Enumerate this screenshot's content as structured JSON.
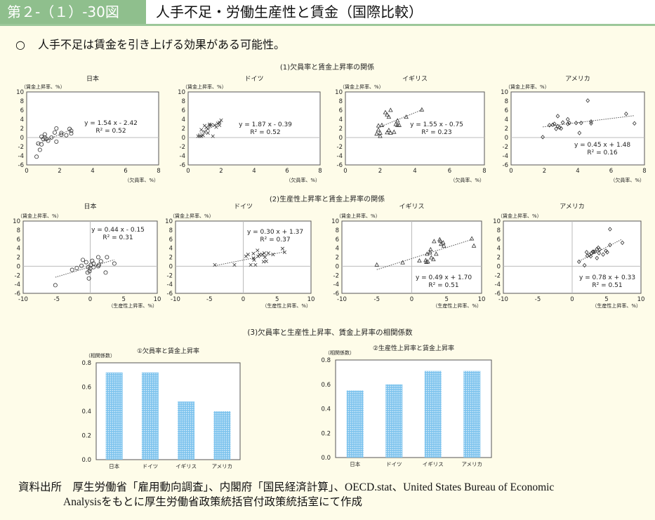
{
  "header": {
    "figure_number": "第２-（１）-30図",
    "title": "人手不足・労働生産性と賃金（国際比較）"
  },
  "lead": {
    "bullet": "○",
    "text": "人手不足は賃金を引き上げる効果がある可能性。"
  },
  "section_titles": [
    "(1)欠員率と賃金上昇率の関係",
    "(2)生産性上昇率と賃金上昇率の関係",
    "(3)欠員率と生産性上昇率、賃金上昇率の相関係数"
  ],
  "colors": {
    "header_green": "#8fbf8d",
    "bar_blue": "#7fc4ee",
    "background": "#fefce9"
  },
  "chart_data": [
    {
      "type": "scatter",
      "group": 1,
      "title": "日本",
      "ylabel": "（賃金上昇率、%）",
      "xlabel": "（欠員率、%）",
      "xlim": [
        0,
        8
      ],
      "ylim": [
        -6,
        10
      ],
      "xticks": [
        0,
        2,
        4,
        6,
        8
      ],
      "yticks": [
        -6,
        -4,
        -2,
        0,
        2,
        4,
        6,
        8,
        10
      ],
      "marker": "circle",
      "equation": "y = 1.54 x - 2.42",
      "r2": "R² = 0.52",
      "trend": {
        "slope": 1.54,
        "intercept": -2.42,
        "x_range": [
          0.6,
          2.7
        ]
      },
      "points": [
        [
          0.6,
          -4.2
        ],
        [
          0.7,
          -1.3
        ],
        [
          0.8,
          -2.7
        ],
        [
          0.9,
          -1.5
        ],
        [
          0.9,
          0.2
        ],
        [
          1.0,
          -0.3
        ],
        [
          1.1,
          0.7
        ],
        [
          1.1,
          0
        ],
        [
          1.2,
          -0.3
        ],
        [
          1.3,
          -0.7
        ],
        [
          1.5,
          0
        ],
        [
          1.7,
          1.1
        ],
        [
          1.8,
          2.0
        ],
        [
          1.8,
          -0.9
        ],
        [
          2.1,
          1.0
        ],
        [
          2.1,
          0.6
        ],
        [
          2.4,
          0.5
        ],
        [
          2.6,
          1.9
        ],
        [
          2.7,
          0.9
        ],
        [
          2.7,
          1.5
        ]
      ]
    },
    {
      "type": "scatter",
      "group": 1,
      "title": "ドイツ",
      "ylabel": "（賃金上昇率、%）",
      "xlabel": "（欠員率、%）",
      "xlim": [
        0,
        8
      ],
      "ylim": [
        -6,
        10
      ],
      "xticks": [
        0,
        2,
        4,
        6,
        8
      ],
      "yticks": [
        -6,
        -4,
        -2,
        0,
        2,
        4,
        6,
        8,
        10
      ],
      "marker": "cross",
      "equation": "y = 1.87 x - 0.39",
      "r2": "R² = 0.52",
      "trend": {
        "slope": 1.87,
        "intercept": -0.39,
        "x_range": [
          0.6,
          2.0
        ]
      },
      "points": [
        [
          0.6,
          0.3
        ],
        [
          0.7,
          0.3
        ],
        [
          0.8,
          0.3
        ],
        [
          0.8,
          1.7
        ],
        [
          0.9,
          0.5
        ],
        [
          1.0,
          2.6
        ],
        [
          1.0,
          1.2
        ],
        [
          1.1,
          2.2
        ],
        [
          1.2,
          1.0
        ],
        [
          1.2,
          1.9
        ],
        [
          1.3,
          2.9
        ],
        [
          1.3,
          2.6
        ],
        [
          1.4,
          2.8
        ],
        [
          1.5,
          0.3
        ],
        [
          1.6,
          2.7
        ],
        [
          1.7,
          2.3
        ],
        [
          1.8,
          3.1
        ],
        [
          1.9,
          2.7
        ],
        [
          1.9,
          3.3
        ],
        [
          2.0,
          3.8
        ]
      ]
    },
    {
      "type": "scatter",
      "group": 1,
      "title": "イギリス",
      "ylabel": "（賃金上昇率、%）",
      "xlabel": "（欠員率、%）",
      "xlim": [
        0,
        8
      ],
      "ylim": [
        -6,
        10
      ],
      "xticks": [
        0,
        2,
        4,
        6,
        8
      ],
      "yticks": [
        -6,
        -4,
        -2,
        0,
        2,
        4,
        6,
        8,
        10
      ],
      "marker": "triangle",
      "equation": "y = 1.55 x - 0.75",
      "r2": "R² = 0.23",
      "trend": {
        "slope": 1.55,
        "intercept": -0.75,
        "x_range": [
          2.1,
          4.4
        ]
      },
      "points": [
        [
          1.8,
          0.8
        ],
        [
          1.9,
          1.7
        ],
        [
          1.9,
          2.6
        ],
        [
          2.0,
          0.3
        ],
        [
          2.0,
          1.0
        ],
        [
          2.1,
          2.7
        ],
        [
          2.3,
          5.5
        ],
        [
          2.4,
          5.0
        ],
        [
          2.4,
          1.1
        ],
        [
          2.5,
          4.5
        ],
        [
          2.5,
          1.6
        ],
        [
          2.6,
          6.0
        ],
        [
          2.6,
          1.0
        ],
        [
          2.8,
          1.2
        ],
        [
          2.9,
          2.9
        ],
        [
          3.0,
          3.7
        ],
        [
          3.0,
          2.7
        ],
        [
          3.1,
          2.7
        ],
        [
          3.5,
          4.5
        ],
        [
          4.4,
          6.1
        ]
      ]
    },
    {
      "type": "scatter",
      "group": 1,
      "title": "アメリカ",
      "ylabel": "（賃金上昇率、%）",
      "xlabel": "（欠員率、%）",
      "xlim": [
        0,
        8
      ],
      "ylim": [
        -6,
        10
      ],
      "xticks": [
        0,
        2,
        4,
        6,
        8
      ],
      "yticks": [
        -6,
        -4,
        -2,
        0,
        2,
        4,
        6,
        8,
        10
      ],
      "marker": "diamond",
      "equation": "y = 0.45 x + 1.48",
      "r2": "R² = 0.16",
      "trend": {
        "slope": 0.45,
        "intercept": 1.48,
        "x_range": [
          1.9,
          7.4
        ]
      },
      "points": [
        [
          1.9,
          0.1
        ],
        [
          2.3,
          2.7
        ],
        [
          2.5,
          2.8
        ],
        [
          2.6,
          3.0
        ],
        [
          2.7,
          1.9
        ],
        [
          2.8,
          4.7
        ],
        [
          2.8,
          2.5
        ],
        [
          2.9,
          2.2
        ],
        [
          3.0,
          2.0
        ],
        [
          3.1,
          3.3
        ],
        [
          3.4,
          4.0
        ],
        [
          3.4,
          3.0
        ],
        [
          3.5,
          3.2
        ],
        [
          3.9,
          3.2
        ],
        [
          4.1,
          1.0
        ],
        [
          4.2,
          3.2
        ],
        [
          4.6,
          8.1
        ],
        [
          4.8,
          3.1
        ],
        [
          4.8,
          3.5
        ],
        [
          6.9,
          5.2
        ],
        [
          7.4,
          3.1
        ]
      ]
    },
    {
      "type": "scatter",
      "group": 2,
      "title": "日本",
      "ylabel": "（賃金上昇率、%）",
      "xlabel": "（生産性上昇率、%）",
      "xlim": [
        -10,
        10
      ],
      "ylim": [
        -6,
        10
      ],
      "xticks": [
        -10,
        -5,
        0,
        5,
        10
      ],
      "yticks": [
        -6,
        -4,
        -2,
        0,
        2,
        4,
        6,
        8,
        10
      ],
      "marker": "circle",
      "equation": "y = 0.44 x - 0.15",
      "r2": "R² = 0.31",
      "trend": {
        "slope": 0.44,
        "intercept": -0.15,
        "x_range": [
          -5.2,
          3.6
        ]
      },
      "points": [
        [
          -5.2,
          -4.2
        ],
        [
          -2.7,
          -0.8
        ],
        [
          -2.0,
          -0.4
        ],
        [
          -1.3,
          0.1
        ],
        [
          -1.1,
          1.4
        ],
        [
          -0.6,
          0.9
        ],
        [
          -0.4,
          -1.4
        ],
        [
          -0.3,
          -0.2
        ],
        [
          -0.2,
          -2.7
        ],
        [
          -0.1,
          -1.1
        ],
        [
          0,
          -0.5
        ],
        [
          0.1,
          0.3
        ],
        [
          0.3,
          1.2
        ],
        [
          0.5,
          0.6
        ],
        [
          0.5,
          -0.2
        ],
        [
          1.2,
          2.0
        ],
        [
          1.2,
          0
        ],
        [
          1.3,
          0.3
        ],
        [
          1.6,
          1.1
        ],
        [
          2.3,
          -1.4
        ],
        [
          2.5,
          2.0
        ],
        [
          3.6,
          0.6
        ]
      ]
    },
    {
      "type": "scatter",
      "group": 2,
      "title": "ドイツ",
      "ylabel": "（賃金上昇率、%）",
      "xlabel": "（生産性上昇率、%）",
      "xlim": [
        -10,
        10
      ],
      "ylim": [
        -6,
        10
      ],
      "xticks": [
        -10,
        -5,
        0,
        5,
        10
      ],
      "yticks": [
        -6,
        -4,
        -2,
        0,
        2,
        4,
        6,
        8,
        10
      ],
      "marker": "cross",
      "equation": "y = 0.30 x + 1.37",
      "r2": "R² = 0.37",
      "trend": {
        "slope": 0.3,
        "intercept": 1.37,
        "x_range": [
          -4.2,
          6.1
        ]
      },
      "points": [
        [
          -4.2,
          0.3
        ],
        [
          -1.3,
          0.3
        ],
        [
          0.4,
          2.2
        ],
        [
          0.7,
          2.6
        ],
        [
          1.1,
          0.3
        ],
        [
          1.5,
          2.8
        ],
        [
          1.5,
          1.8
        ],
        [
          1.6,
          1.4
        ],
        [
          1.8,
          0.3
        ],
        [
          2.1,
          3.5
        ],
        [
          2.2,
          2.2
        ],
        [
          2.4,
          2.6
        ],
        [
          2.8,
          2.6
        ],
        [
          3.0,
          1.0
        ],
        [
          3.1,
          2.9
        ],
        [
          3.2,
          2.0
        ],
        [
          3.4,
          1.1
        ],
        [
          3.7,
          2.9
        ],
        [
          4.4,
          2.6
        ],
        [
          5.8,
          3.9
        ],
        [
          6.1,
          3.1
        ]
      ]
    },
    {
      "type": "scatter",
      "group": 2,
      "title": "イギリス",
      "ylabel": "（賃金上昇率、%）",
      "xlabel": "（生産性上昇率、%）",
      "xlim": [
        -10,
        10
      ],
      "ylim": [
        -6,
        10
      ],
      "xticks": [
        -10,
        -5,
        0,
        5,
        10
      ],
      "yticks": [
        -6,
        -4,
        -2,
        0,
        2,
        4,
        6,
        8,
        10
      ],
      "marker": "triangle",
      "equation": "y = 0.49 x + 1.70",
      "r2": "R² = 0.51",
      "trend": {
        "slope": 0.49,
        "intercept": 1.7,
        "x_range": [
          -5.0,
          8.6
        ]
      },
      "points": [
        [
          -5.0,
          0.3
        ],
        [
          -1.3,
          0.8
        ],
        [
          1.1,
          1.2
        ],
        [
          2.0,
          1.3
        ],
        [
          2.1,
          0.9
        ],
        [
          2.2,
          2.7
        ],
        [
          2.3,
          1.0
        ],
        [
          2.6,
          3.0
        ],
        [
          2.7,
          3.7
        ],
        [
          2.8,
          1.9
        ],
        [
          3.1,
          1.5
        ],
        [
          3.2,
          5.5
        ],
        [
          3.5,
          2.7
        ],
        [
          4.0,
          5.9
        ],
        [
          4.1,
          5.6
        ],
        [
          4.2,
          4.9
        ],
        [
          4.5,
          5.2
        ],
        [
          4.6,
          4.5
        ],
        [
          8.6,
          6.1
        ],
        [
          8.9,
          4.5
        ]
      ]
    },
    {
      "type": "scatter",
      "group": 2,
      "title": "アメリカ",
      "ylabel": "（賃金上昇率、%）",
      "xlabel": "（生産性上昇率、%）",
      "xlim": [
        -10,
        10
      ],
      "ylim": [
        -6,
        10
      ],
      "xticks": [
        -10,
        -5,
        0,
        5,
        10
      ],
      "yticks": [
        -6,
        -4,
        -2,
        0,
        2,
        4,
        6,
        8,
        10
      ],
      "marker": "diamond",
      "equation": "y = 0.78 x + 0.33",
      "r2": "R² = 0.51",
      "trend": {
        "slope": 0.78,
        "intercept": 0.33,
        "x_range": [
          1.0,
          7.2
        ]
      },
      "points": [
        [
          1.0,
          1.0
        ],
        [
          1.8,
          0.2
        ],
        [
          2.1,
          3.1
        ],
        [
          2.2,
          2.3
        ],
        [
          2.5,
          2.5
        ],
        [
          2.7,
          2.2
        ],
        [
          2.8,
          2.9
        ],
        [
          3.0,
          3.2
        ],
        [
          3.1,
          3.2
        ],
        [
          3.3,
          3.2
        ],
        [
          3.6,
          1.8
        ],
        [
          3.6,
          3.8
        ],
        [
          3.8,
          4.1
        ],
        [
          3.9,
          2.9
        ],
        [
          4.0,
          3.7
        ],
        [
          4.5,
          2.6
        ],
        [
          4.9,
          3.4
        ],
        [
          5.1,
          3.1
        ],
        [
          5.5,
          4.7
        ],
        [
          5.5,
          8.2
        ],
        [
          7.3,
          5.2
        ]
      ]
    },
    {
      "type": "bar",
      "title": "①欠員率と賃金上昇率",
      "ylabel": "（相関係数）",
      "categories": [
        "日本",
        "ドイツ",
        "イギリス",
        "アメリカ"
      ],
      "values": [
        0.72,
        0.72,
        0.48,
        0.4
      ],
      "ylim": [
        0,
        0.8
      ],
      "yticks": [
        "0.0",
        "0.2",
        "0.4",
        "0.6",
        "0.8"
      ]
    },
    {
      "type": "bar",
      "title": "②生産性上昇率と賃金上昇率",
      "ylabel": "（相関係数）",
      "categories": [
        "日本",
        "ドイツ",
        "イギリス",
        "アメリカ"
      ],
      "values": [
        0.55,
        0.6,
        0.71,
        0.71
      ],
      "ylim": [
        0,
        0.8
      ],
      "yticks": [
        "0.0",
        "0.2",
        "0.4",
        "0.6",
        "0.8"
      ]
    }
  ],
  "source": {
    "line1": "資料出所　厚生労働省「雇用動向調査」、内閣府「国民経済計算」、OECD.stat、United States Bureau of Economic",
    "line2": "Analysisをもとに厚生労働省政策統括官付政策統括室にて作成"
  }
}
